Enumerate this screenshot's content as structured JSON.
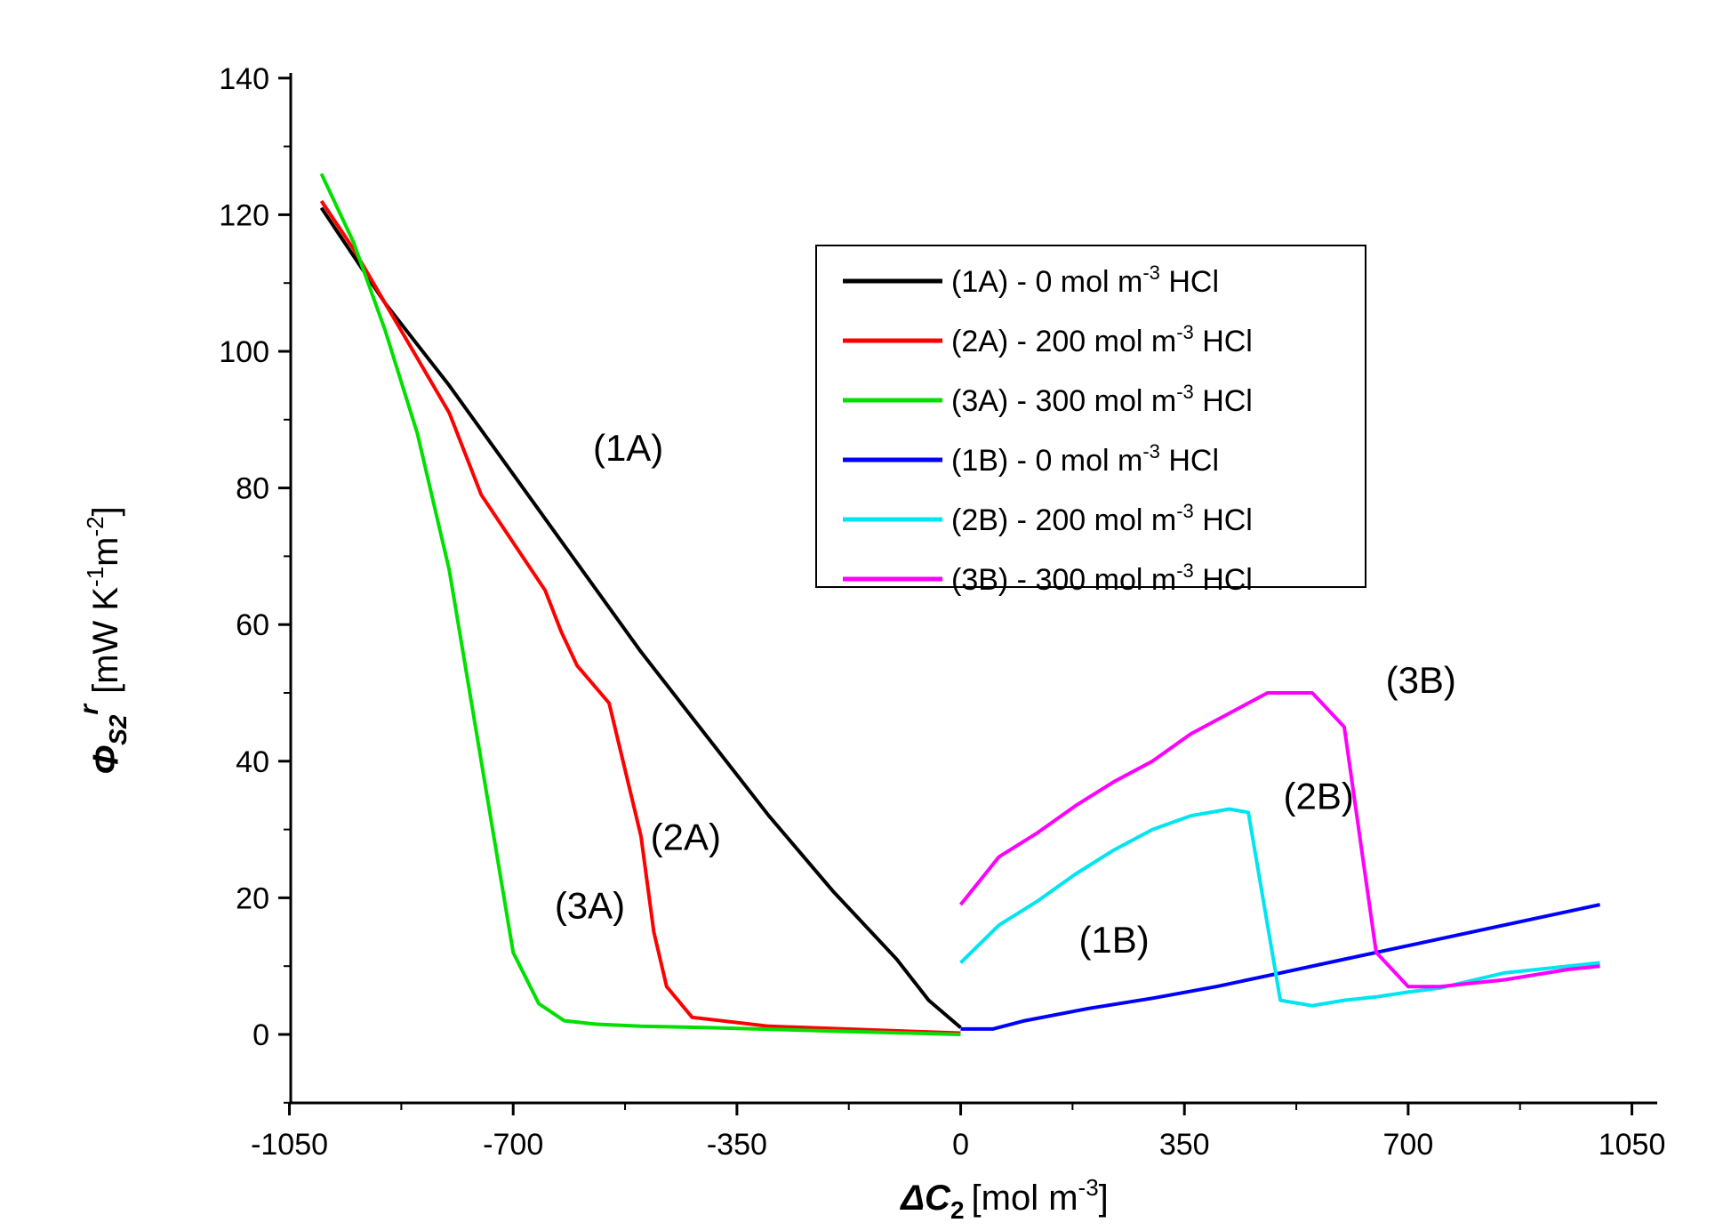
{
  "chart_data": {
    "type": "line",
    "title": "",
    "xlabel": {
      "prefix": "ΔC",
      "sub": "2",
      "unit": "[mol m",
      "unit_sup": "-3",
      "unit_close": "]"
    },
    "ylabel": {
      "prefix": "Φ",
      "sub": "S2",
      "sup": "r",
      "unit": "[mW K",
      "sup1": "-1",
      "mid": "m",
      "sup2": "-2",
      "close": "]"
    },
    "xlim": [
      -1120,
      1050
    ],
    "ylim": [
      -10,
      140
    ],
    "xticks": [
      -1050,
      -700,
      -350,
      0,
      350,
      700,
      1050
    ],
    "xtick_labels": [
      "-1050",
      "-700",
      "-350",
      "0",
      "350",
      "700",
      "1050"
    ],
    "yticks": [
      0,
      20,
      40,
      60,
      80,
      100,
      120,
      140
    ],
    "ytick_labels": [
      "0",
      "20",
      "40",
      "60",
      "80",
      "100",
      "120",
      "140"
    ],
    "legend_position": "upper-right",
    "series": [
      {
        "name": "(1A) - 0 mol m-3 HCl",
        "legend": {
          "label": "(1A) - 0 mol m",
          "sup": "-3",
          "suffix": " HCl"
        },
        "color": "#000000",
        "x": [
          -1000,
          -900,
          -800,
          -700,
          -600,
          -500,
          -400,
          -300,
          -200,
          -100,
          -50,
          0
        ],
        "y": [
          121,
          107,
          95,
          82,
          69,
          56,
          44,
          32,
          21,
          11,
          5,
          1
        ]
      },
      {
        "name": "(2A) - 200 mol m-3 HCl",
        "legend": {
          "label": "(2A) - 200 mol m",
          "sup": "-3",
          "suffix": " HCl"
        },
        "color": "#ff0000",
        "x": [
          -1000,
          -950,
          -900,
          -850,
          -800,
          -750,
          -700,
          -650,
          -625,
          -600,
          -550,
          -500,
          -480,
          -460,
          -420,
          -300,
          0
        ],
        "y": [
          122,
          115,
          107,
          99,
          91,
          79,
          72,
          65,
          59,
          54,
          48.5,
          29,
          15,
          7,
          2.5,
          1.2,
          0.2
        ]
      },
      {
        "name": "(3A) - 300 mol m-3 HCl",
        "legend": {
          "label": "(3A) - 300 mol m",
          "sup": "-3",
          "suffix": " HCl"
        },
        "color": "#00e000",
        "x": [
          -1000,
          -950,
          -900,
          -850,
          -800,
          -750,
          -700,
          -660,
          -620,
          -570,
          -500,
          -400,
          -200,
          0
        ],
        "y": [
          126,
          116,
          103,
          88,
          68,
          40,
          12,
          4.5,
          2,
          1.5,
          1.2,
          1,
          0.5,
          0
        ]
      },
      {
        "name": "(1B) - 0 mol m-3 HCl",
        "legend": {
          "label": "(1B) - 0 mol m",
          "sup": "-3",
          "suffix": " HCl"
        },
        "color": "#0000ff",
        "x": [
          0,
          50,
          100,
          200,
          300,
          400,
          500,
          600,
          700,
          800,
          900,
          1000
        ],
        "y": [
          0.8,
          0.8,
          2,
          3.8,
          5.3,
          7,
          9,
          11,
          13,
          15,
          17,
          19
        ]
      },
      {
        "name": "(2B) - 200 mol m-3 HCl",
        "legend": {
          "label": "(2B) - 200 mol m",
          "sup": "-3",
          "suffix": " HCl"
        },
        "color": "#00e5f0",
        "x": [
          0,
          60,
          120,
          180,
          240,
          300,
          360,
          420,
          450,
          500,
          550,
          600,
          650,
          700,
          750,
          850,
          1000
        ],
        "y": [
          10.5,
          16,
          19.5,
          23.5,
          27,
          30,
          32,
          33,
          32.5,
          5,
          4.2,
          5,
          5.5,
          6.2,
          6.8,
          9,
          10.5
        ]
      },
      {
        "name": "(3B) - 300 mol m-3 HCl",
        "legend": {
          "label": "(3B) - 300 mol m",
          "sup": "-3",
          "suffix": " HCl"
        },
        "color": "#ff00ff",
        "x": [
          0,
          60,
          120,
          180,
          240,
          300,
          360,
          420,
          480,
          550,
          600,
          650,
          700,
          750,
          850,
          950,
          1000
        ],
        "y": [
          19,
          26,
          29.5,
          33.5,
          37,
          40,
          44,
          47,
          50,
          50,
          45,
          12,
          7,
          7,
          8,
          9.5,
          10
        ]
      }
    ],
    "annotations": [
      {
        "text": "(1A)",
        "x": -520,
        "y": 84
      },
      {
        "text": "(2A)",
        "x": -430,
        "y": 27
      },
      {
        "text": "(3A)",
        "x": -580,
        "y": 17
      },
      {
        "text": "(1B)",
        "x": 240,
        "y": 12
      },
      {
        "text": "(2B)",
        "x": 560,
        "y": 33
      },
      {
        "text": "(3B)",
        "x": 720,
        "y": 50
      }
    ]
  }
}
